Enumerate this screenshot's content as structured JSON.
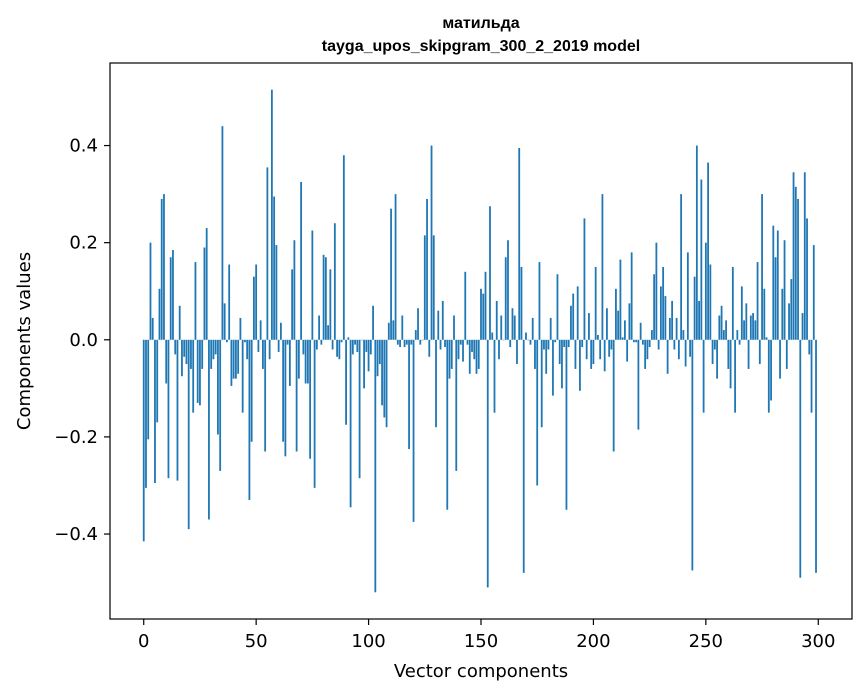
{
  "chart_data": {
    "type": "bar",
    "title": "матильда",
    "subtitle": "tayga_upos_skipgram_300_2_2019 model",
    "xlabel": "Vector components",
    "ylabel": "Components values",
    "xlim": [
      -15,
      315
    ],
    "ylim": [
      -0.575,
      0.57
    ],
    "xticks": [
      0,
      50,
      100,
      150,
      200,
      250,
      300
    ],
    "xtick_labels": [
      "0",
      "50",
      "100",
      "150",
      "200",
      "250",
      "300"
    ],
    "yticks": [
      -0.4,
      -0.2,
      0.0,
      0.2,
      0.4
    ],
    "ytick_labels": [
      "−0.4",
      "−0.2",
      "0.0",
      "0.2",
      "0.4"
    ],
    "bar_color": "#1f77b4",
    "bar_count": 300,
    "values": [
      -0.415,
      -0.305,
      -0.205,
      0.2,
      0.045,
      -0.295,
      -0.17,
      0.105,
      0.29,
      0.3,
      -0.09,
      -0.285,
      0.17,
      0.185,
      -0.03,
      -0.29,
      0.07,
      -0.075,
      -0.035,
      -0.05,
      -0.39,
      -0.06,
      -0.15,
      0.16,
      -0.13,
      -0.135,
      -0.06,
      0.19,
      0.23,
      -0.37,
      -0.06,
      -0.04,
      -0.03,
      -0.195,
      -0.27,
      0.44,
      0.075,
      -0.005,
      0.155,
      -0.095,
      -0.08,
      -0.08,
      -0.07,
      0.045,
      -0.15,
      -0.005,
      -0.04,
      -0.33,
      -0.21,
      0.13,
      0.155,
      -0.025,
      0.04,
      -0.06,
      -0.23,
      0.355,
      -0.04,
      0.515,
      0.295,
      0.195,
      -0.025,
      0.035,
      -0.21,
      -0.24,
      -0.01,
      -0.095,
      0.145,
      0.205,
      -0.23,
      -0.08,
      0.325,
      -0.03,
      -0.09,
      -0.09,
      -0.245,
      0.225,
      -0.305,
      -0.02,
      0.05,
      -0.01,
      0.175,
      0.17,
      0.03,
      0.145,
      -0.02,
      0.24,
      -0.035,
      -0.04,
      -0.005,
      0.38,
      -0.175,
      0.005,
      -0.345,
      -0.03,
      -0.01,
      -0.025,
      -0.285,
      0.0,
      -0.1,
      -0.025,
      -0.065,
      -0.03,
      0.07,
      -0.52,
      -0.075,
      -0.05,
      -0.135,
      -0.16,
      -0.18,
      0.035,
      0.27,
      0.04,
      0.3,
      -0.01,
      -0.015,
      0.05,
      -0.015,
      -0.01,
      -0.225,
      -0.01,
      -0.375,
      0.02,
      0.065,
      -0.01,
      0.0,
      0.215,
      0.29,
      -0.035,
      0.4,
      0.215,
      -0.18,
      0.06,
      -0.02,
      0.08,
      -0.015,
      -0.35,
      -0.08,
      -0.06,
      0.05,
      -0.27,
      -0.04,
      -0.01,
      -0.045,
      0.14,
      -0.01,
      -0.07,
      -0.025,
      -0.04,
      -0.07,
      -0.06,
      0.105,
      0.095,
      0.14,
      -0.51,
      0.275,
      0.015,
      -0.15,
      0.08,
      -0.04,
      0.05,
      0.0,
      0.17,
      0.205,
      -0.015,
      0.065,
      0.05,
      -0.05,
      0.395,
      0.15,
      -0.48,
      0.015,
      0.0,
      -0.01,
      0.045,
      -0.06,
      -0.3,
      0.16,
      -0.18,
      -0.02,
      -0.07,
      -0.02,
      0.045,
      -0.115,
      -0.005,
      0.135,
      -0.05,
      -0.1,
      -0.015,
      -0.35,
      -0.015,
      0.07,
      0.095,
      -0.06,
      0.11,
      -0.105,
      -0.015,
      0.25,
      -0.04,
      0.055,
      -0.06,
      -0.05,
      0.15,
      0.01,
      -0.04,
      0.3,
      -0.065,
      0.065,
      -0.035,
      -0.02,
      -0.23,
      0.105,
      0.06,
      0.165,
      0.005,
      0.04,
      -0.045,
      0.075,
      0.18,
      -0.005,
      -0.005,
      -0.185,
      0.035,
      -0.01,
      -0.06,
      -0.04,
      -0.015,
      0.02,
      0.135,
      0.2,
      -0.02,
      0.11,
      0.15,
      0.09,
      -0.07,
      0.045,
      0.08,
      -0.02,
      0.045,
      -0.04,
      0.3,
      0.02,
      -0.055,
      0.18,
      -0.035,
      -0.475,
      0.13,
      0.4,
      0.08,
      0.33,
      -0.15,
      0.2,
      0.365,
      0.155,
      -0.05,
      -0.02,
      -0.08,
      0.05,
      0.07,
      0.02,
      0.04,
      -0.06,
      -0.1,
      0.15,
      -0.15,
      0.02,
      -0.01,
      0.11,
      0.04,
      0.075,
      -0.06,
      0.05,
      0.055,
      0.04,
      0.16,
      -0.05,
      0.3,
      0.105,
      0.005,
      -0.15,
      -0.125,
      0.235,
      0.17,
      0.225,
      -0.08,
      0.105,
      0.205,
      -0.06,
      0.075,
      0.125,
      0.345,
      0.315,
      0.29,
      -0.49,
      0.055,
      0.345,
      0.25,
      -0.03,
      -0.15,
      0.195,
      -0.48
    ]
  }
}
